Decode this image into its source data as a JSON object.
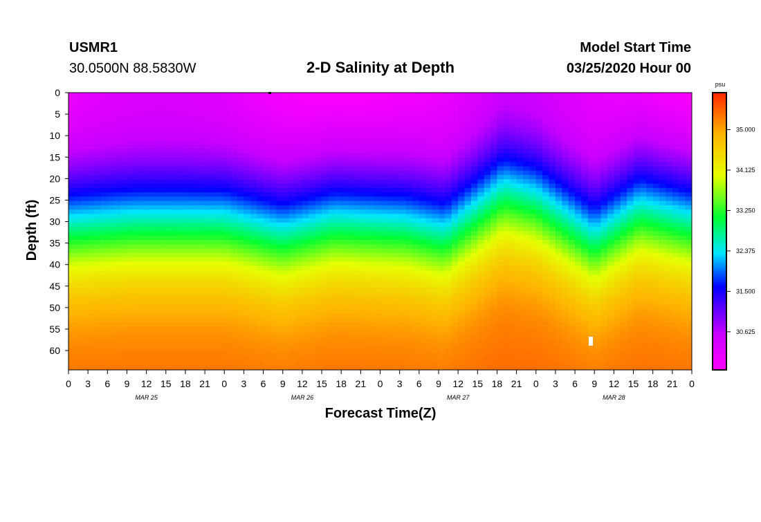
{
  "header": {
    "station": "USMR1",
    "coords": "30.0500N 88.5830W",
    "title": "2-D Salinity at Depth",
    "start_label": "Model Start Time",
    "start_value": "03/25/2020 Hour 00"
  },
  "chart_data": {
    "type": "heatmap",
    "title": "2-D Salinity at Depth",
    "xlabel": "Forecast Time(Z)",
    "ylabel": "Depth (ft)",
    "x_range_hours": [
      0,
      96
    ],
    "y_range_ft": [
      0,
      64.5
    ],
    "x_ticks": [
      "0",
      "3",
      "6",
      "9",
      "12",
      "15",
      "18",
      "21",
      "0",
      "3",
      "6",
      "9",
      "12",
      "15",
      "18",
      "21",
      "0",
      "3",
      "6",
      "9",
      "12",
      "15",
      "18",
      "21",
      "0",
      "3",
      "6",
      "9",
      "12",
      "15",
      "18",
      "21",
      "0"
    ],
    "y_ticks": [
      "0",
      "5",
      "10",
      "15",
      "20",
      "25",
      "30",
      "35",
      "40",
      "45",
      "50",
      "55",
      "60"
    ],
    "day_labels": [
      {
        "label": "MAR 25",
        "hour": 12
      },
      {
        "label": "MAR 26",
        "hour": 36
      },
      {
        "label": "MAR 27",
        "hour": 60
      },
      {
        "label": "MAR 28",
        "hour": 84
      }
    ],
    "halocline_depth_ft": [
      {
        "hour": 0,
        "depth": 31
      },
      {
        "hour": 10,
        "depth": 30
      },
      {
        "hour": 24,
        "depth": 30
      },
      {
        "hour": 33,
        "depth": 33
      },
      {
        "hour": 41,
        "depth": 30
      },
      {
        "hour": 52,
        "depth": 31
      },
      {
        "hour": 58,
        "depth": 33
      },
      {
        "hour": 67,
        "depth": 23
      },
      {
        "hour": 72,
        "depth": 25
      },
      {
        "hour": 81,
        "depth": 34
      },
      {
        "hour": 88,
        "depth": 27
      },
      {
        "hour": 96,
        "depth": 30
      }
    ],
    "surface_salinity_psu": 29.9,
    "bottom_salinity_psu": 35.4,
    "colorbar": {
      "unit": "psu",
      "range": [
        29.8,
        35.8
      ],
      "ticks": [
        "35.000",
        "34.125",
        "33.250",
        "32.375",
        "31.500",
        "30.625"
      ]
    }
  }
}
